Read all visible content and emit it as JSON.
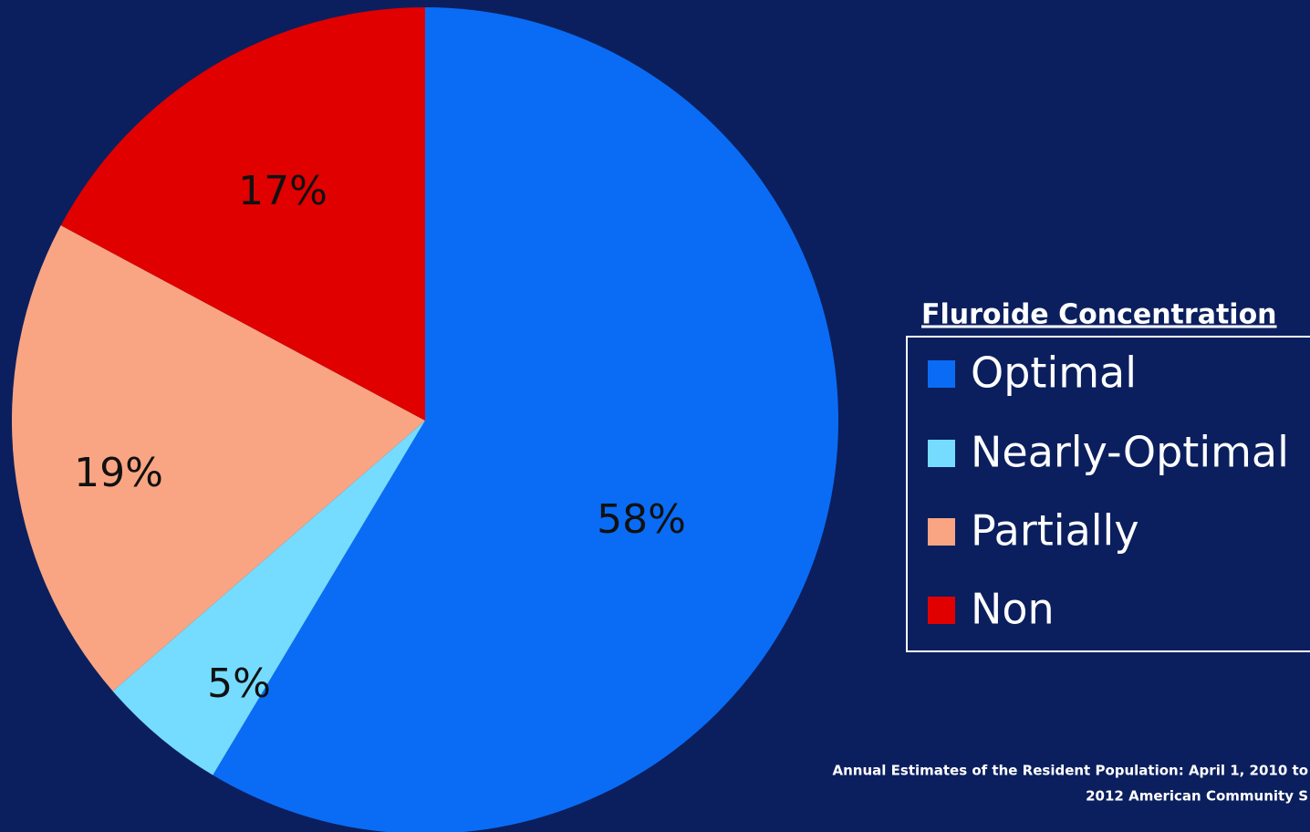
{
  "chart_data": {
    "type": "pie",
    "legend_title": "Fluroide Concentration",
    "categories": [
      "Optimal",
      "Nearly-Optimal",
      "Partially",
      "Non"
    ],
    "values": [
      58,
      5,
      19,
      17
    ],
    "colors": [
      "#0a6cf5",
      "#75dcff",
      "#f9a583",
      "#e00000"
    ],
    "value_labels": [
      "58%",
      "5%",
      "19%",
      "17%"
    ],
    "source": [
      "Annual Estimates of the Resident Population: April 1, 2010 to",
      "2012 American Community S"
    ]
  }
}
